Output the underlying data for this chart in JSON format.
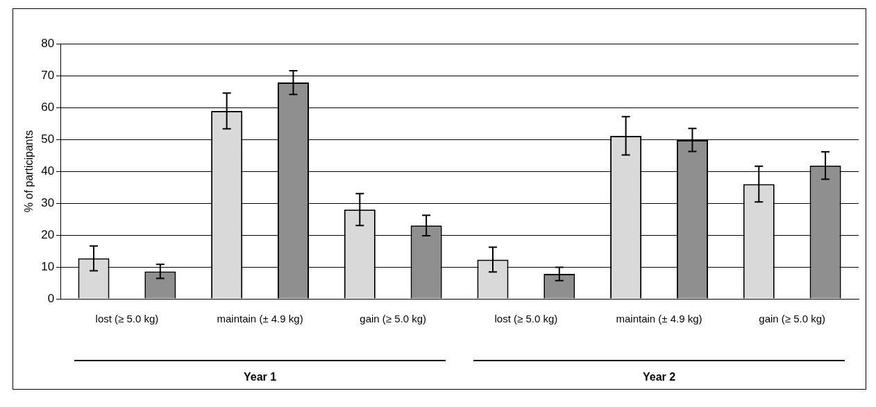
{
  "chart_data": {
    "type": "bar",
    "ylabel": "% of participants",
    "categories": [
      "lost (≥ 5.0 kg)",
      "maintain (± 4.9 kg)",
      "gain (≥ 5.0 kg)",
      "lost (≥ 5.0 kg)",
      "maintain (± 4.9 kg)",
      "gain (≥ 5.0 kg)"
    ],
    "series": [
      {
        "color": "#d9d9d9",
        "values": [
          12.7,
          58.9,
          28.0,
          12.3,
          51.1,
          36.0
        ],
        "errors": [
          3.9,
          5.6,
          5.0,
          3.9,
          6.0,
          5.6
        ]
      },
      {
        "color": "#8f8f8f",
        "values": [
          8.6,
          67.8,
          23.0,
          7.8,
          49.8,
          41.8
        ],
        "errors": [
          2.2,
          3.7,
          3.2,
          2.1,
          3.6,
          4.3
        ]
      }
    ],
    "ylim": [
      0,
      80
    ],
    "yticks": [
      0,
      10,
      20,
      30,
      40,
      50,
      60,
      70,
      80
    ],
    "grid": "y",
    "legend": false,
    "annotations": [
      "Year 1",
      "Year 2"
    ]
  }
}
